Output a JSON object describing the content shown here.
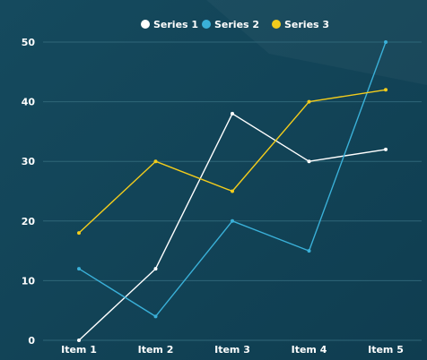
{
  "chart_data": {
    "type": "line",
    "categories": [
      "Item 1",
      "Item 2",
      "Item 3",
      "Item 4",
      "Item 5"
    ],
    "series": [
      {
        "name": "Series 1",
        "values": [
          0,
          12,
          38,
          30,
          32
        ]
      },
      {
        "name": "Series 2",
        "values": [
          12,
          4,
          20,
          15,
          50
        ]
      },
      {
        "name": "Series 3",
        "values": [
          18,
          30,
          25,
          40,
          42
        ]
      }
    ],
    "ylim": [
      0,
      50
    ],
    "yticks": [
      0,
      10,
      20,
      30,
      40,
      50
    ],
    "grid": true,
    "legend_position": "top-center"
  },
  "colors": {
    "background": "#154a5e",
    "background_dark": "#0f3d50",
    "grid": "#2f6678",
    "tick_text": "#ffffff",
    "series": [
      "#ffffff",
      "#3ab0d8",
      "#f2cc1c"
    ]
  }
}
